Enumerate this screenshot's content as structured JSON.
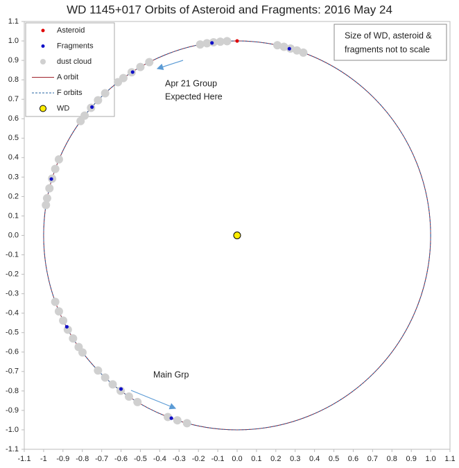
{
  "chart_data": {
    "type": "scatter",
    "title": "WD 1145+017 Orbits of Asteroid and Fragments: 2016 May 24",
    "xlim": [
      -1.1,
      1.1
    ],
    "ylim": [
      -1.1,
      1.1
    ],
    "xticks": [
      -1.1,
      -1,
      -0.9,
      -0.8,
      -0.7,
      -0.6,
      -0.5,
      -0.4,
      -0.3,
      -0.2,
      -0.1,
      {
        "value": 0,
        "label": "0.0"
      },
      0.1,
      0.2,
      0.3,
      0.4,
      0.5,
      0.6,
      0.7,
      0.8,
      0.9,
      {
        "value": 1,
        "label": "1.0"
      },
      1.1
    ],
    "yticks": [
      -1.1,
      {
        "value": -1,
        "label": "-1.0"
      },
      -0.9,
      -0.8,
      -0.7,
      -0.6,
      -0.5,
      -0.4,
      -0.3,
      -0.2,
      -0.1,
      {
        "value": 0,
        "label": "0.0"
      },
      0.1,
      0.2,
      0.3,
      0.4,
      0.5,
      0.6,
      0.7,
      0.8,
      0.9,
      {
        "value": 1,
        "label": "1.0"
      },
      1.1
    ],
    "grid": false,
    "legend": "upper left",
    "series": [
      {
        "name": "Asteroid",
        "color": "#e00000",
        "x": [
          0
        ],
        "y": [
          1.0
        ]
      },
      {
        "name": "Fragments",
        "color": "#1010c8",
        "x": [
          -0.13,
          0.27,
          -0.54,
          -0.75,
          -0.96,
          -0.88,
          -0.6,
          -0.34
        ],
        "y": [
          0.99,
          0.96,
          0.84,
          0.66,
          0.29,
          -0.47,
          -0.79,
          -0.94
        ]
      },
      {
        "name": "dust cloud",
        "color": "#d0d0d0",
        "x": [
          -0.052,
          -0.087,
          -0.122,
          -0.156,
          -0.191,
          0.342,
          0.309,
          0.276,
          0.242,
          0.208,
          -0.454,
          -0.5,
          -0.545,
          -0.588,
          -0.616,
          -0.682,
          -0.719,
          -0.755,
          -0.788,
          -0.809,
          -0.921,
          -0.94,
          -0.956,
          -0.97,
          -0.982,
          -0.988,
          -0.94,
          -0.921,
          -0.899,
          -0.875,
          -0.848,
          -0.819,
          -0.799,
          -0.719,
          -0.682,
          -0.643,
          -0.602,
          -0.559,
          -0.515,
          -0.358,
          -0.309,
          -0.259
        ],
        "y": [
          0.999,
          0.996,
          0.993,
          0.988,
          0.982,
          0.94,
          0.951,
          0.961,
          0.97,
          0.978,
          0.891,
          0.866,
          0.839,
          0.809,
          0.788,
          0.731,
          0.695,
          0.656,
          0.616,
          0.588,
          0.391,
          0.342,
          0.292,
          0.242,
          0.191,
          0.156,
          -0.342,
          -0.391,
          -0.438,
          -0.485,
          -0.53,
          -0.574,
          -0.602,
          -0.695,
          -0.731,
          -0.766,
          -0.799,
          -0.829,
          -0.857,
          -0.934,
          -0.951,
          -0.966
        ]
      },
      {
        "name": "A orbit",
        "color": "#a0202a",
        "line_style": "solid",
        "center_x": 0,
        "center_y": 0,
        "radius": 1
      },
      {
        "name": "F orbits",
        "color": "#2060a0",
        "line_style": "dashed",
        "center_x": 0,
        "center_y": 0,
        "radius": 1
      },
      {
        "name": "WD",
        "color": "#ffee00",
        "x": [
          0
        ],
        "y": [
          0
        ]
      }
    ],
    "annotations": [
      {
        "lines": [
          "Apr 21 Group",
          "Expected Here"
        ]
      },
      {
        "lines": [
          "Main Grp"
        ]
      }
    ],
    "note": {
      "lines": [
        "Size of WD, asteroid &",
        "fragments not to scale"
      ]
    }
  }
}
